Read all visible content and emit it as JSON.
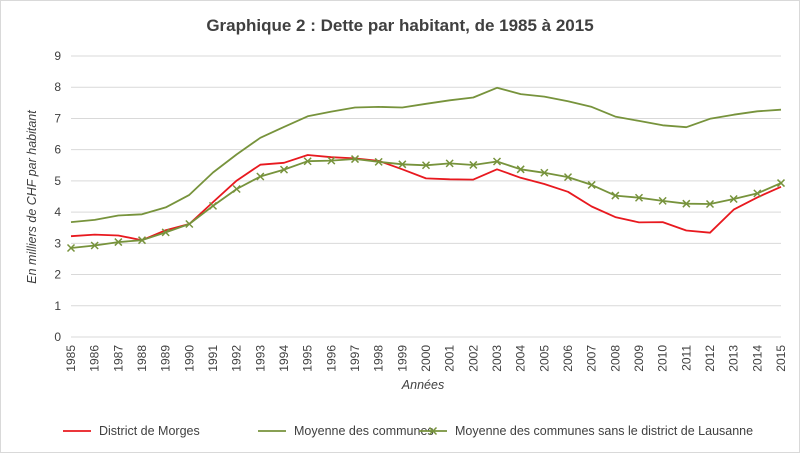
{
  "chart_data": {
    "type": "line",
    "title": "Graphique 2 : Dette par habitant, de 1985 à 2015",
    "xlabel": "Années",
    "ylabel": "En milliers de CHF par habitant",
    "ylim": [
      0,
      9
    ],
    "yticks": [
      "0",
      "1",
      "2",
      "3",
      "4",
      "5",
      "6",
      "7",
      "8",
      "9"
    ],
    "grid": "horizontal",
    "legend_position": "bottom",
    "x": [
      "1985",
      "1986",
      "1987",
      "1988",
      "1989",
      "1990",
      "1991",
      "1992",
      "1993",
      "1994",
      "1995",
      "1996",
      "1997",
      "1998",
      "1999",
      "2000",
      "2001",
      "2002",
      "2003",
      "2004",
      "2005",
      "2006",
      "2007",
      "2008",
      "2009",
      "2010",
      "2011",
      "2012",
      "2013",
      "2014",
      "2015"
    ],
    "series": [
      {
        "name": "District de Morges",
        "color": "#e8191f",
        "marker": "none",
        "values": [
          3.23,
          3.28,
          3.25,
          3.1,
          3.42,
          3.62,
          4.32,
          5.01,
          5.52,
          5.58,
          5.83,
          5.76,
          5.72,
          5.64,
          5.37,
          5.08,
          5.05,
          5.04,
          5.37,
          5.1,
          4.9,
          4.65,
          4.18,
          3.84,
          3.67,
          3.68,
          3.41,
          3.34,
          4.08,
          4.47,
          4.81
        ]
      },
      {
        "name": "Moyenne des communes",
        "color": "#77933c",
        "marker": "none",
        "values": [
          3.68,
          3.75,
          3.89,
          3.93,
          4.15,
          4.55,
          5.27,
          5.85,
          6.38,
          6.73,
          7.07,
          7.22,
          7.35,
          7.37,
          7.35,
          7.47,
          7.58,
          7.67,
          7.98,
          7.78,
          7.7,
          7.55,
          7.37,
          7.06,
          6.92,
          6.78,
          6.72,
          6.99,
          7.12,
          7.23,
          7.28
        ]
      },
      {
        "name": "Moyenne des communes sans le district de Lausanne",
        "color": "#77933c",
        "marker": "x",
        "values": [
          2.85,
          2.93,
          3.04,
          3.1,
          3.35,
          3.62,
          4.2,
          4.74,
          5.14,
          5.36,
          5.63,
          5.65,
          5.7,
          5.61,
          5.53,
          5.5,
          5.56,
          5.51,
          5.62,
          5.37,
          5.26,
          5.12,
          4.87,
          4.53,
          4.46,
          4.36,
          4.27,
          4.26,
          4.42,
          4.6,
          4.93
        ]
      }
    ]
  }
}
